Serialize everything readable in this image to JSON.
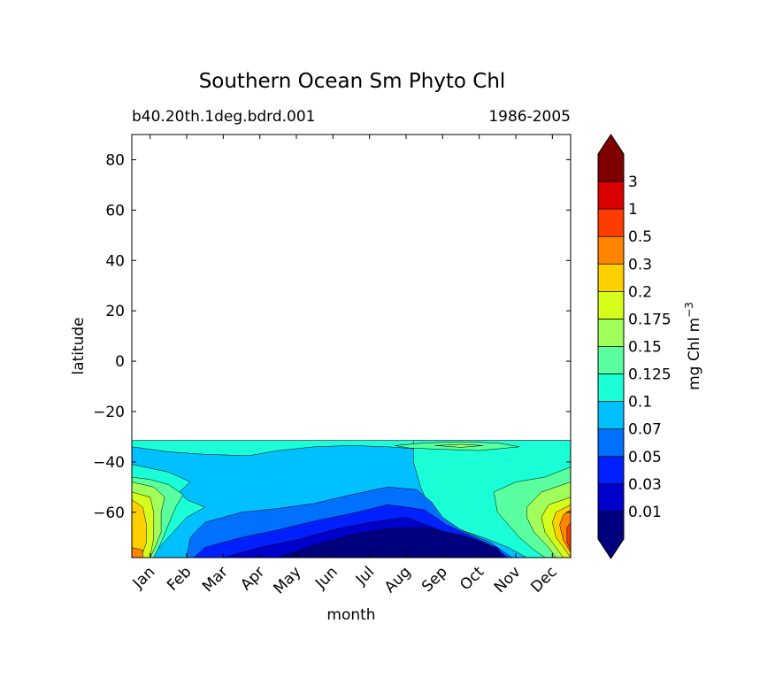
{
  "chart_data": {
    "type": "contourf",
    "title": "Southern Ocean Sm Phyto Chl",
    "subtitle_left": "b40.20th.1deg.bdrd.001",
    "subtitle_right": "1986-2005",
    "xlabel": "month",
    "ylabel": "latitude",
    "x_ticks": [
      "Jan",
      "Feb",
      "Mar",
      "Apr",
      "May",
      "Jun",
      "Jul",
      "Aug",
      "Sep",
      "Oct",
      "Nov",
      "Dec"
    ],
    "y_ticks": [
      80,
      60,
      40,
      20,
      0,
      -20,
      -40,
      -60
    ],
    "ylim": [
      -78,
      90
    ],
    "data_lat_range": [
      -78,
      -31.5
    ],
    "colorbar": {
      "label": "mg Chl m",
      "label_sup": "−3",
      "levels": [
        "0.01",
        "0.03",
        "0.05",
        "0.07",
        "0.1",
        "0.125",
        "0.15",
        "0.175",
        "0.2",
        "0.3",
        "0.5",
        "1",
        "3"
      ],
      "colors": [
        "#00007f",
        "#0000cd",
        "#0020ff",
        "#0070ff",
        "#00c0ff",
        "#1affd5",
        "#5affa0",
        "#a0ff5a",
        "#d5ff1a",
        "#ffd000",
        "#ff8500",
        "#ff3b00",
        "#db0000",
        "#7f0000"
      ],
      "extend": "both"
    },
    "regions": [
      {
        "name": "band-0.07-0.1",
        "level": 4,
        "points": [
          [
            0.0,
            -31.5
          ],
          [
            12.0,
            -31.5
          ],
          [
            12.0,
            -78
          ],
          [
            0.0,
            -78
          ]
        ]
      },
      {
        "name": "band-0.1-0.125-north",
        "level": 5,
        "points": [
          [
            0.0,
            -31.5
          ],
          [
            12.0,
            -31.5
          ],
          [
            12.0,
            -38
          ],
          [
            11.0,
            -37.5
          ],
          [
            10.0,
            -36.0
          ],
          [
            9.0,
            -35.5
          ],
          [
            8.0,
            -35.0
          ],
          [
            7.0,
            -34.0
          ],
          [
            6.0,
            -33.5
          ],
          [
            5.0,
            -34.0
          ],
          [
            4.0,
            -35.5
          ],
          [
            3.2,
            -37.5
          ],
          [
            2.0,
            -37.0
          ],
          [
            1.0,
            -36.0
          ],
          [
            0.0,
            -34.0
          ]
        ]
      },
      {
        "name": "band-0.1-0.125-winter",
        "level": 5,
        "points": [
          [
            0.0,
            -41.0
          ],
          [
            1.0,
            -44.0
          ],
          [
            1.6,
            -48.0
          ],
          [
            1.3,
            -52.0
          ],
          [
            1.5,
            -55.0
          ],
          [
            2.0,
            -58.0
          ],
          [
            1.5,
            -62.0
          ],
          [
            1.0,
            -70.0
          ],
          [
            0.5,
            -78.0
          ],
          [
            0.0,
            -78.0
          ]
        ]
      },
      {
        "name": "band-0.1-0.125-spring",
        "level": 5,
        "points": [
          [
            7.7,
            -31.5
          ],
          [
            12.0,
            -31.5
          ],
          [
            12.0,
            -78.0
          ],
          [
            10.8,
            -78.0
          ],
          [
            10.3,
            -74.0
          ],
          [
            9.6,
            -70.0
          ],
          [
            8.8,
            -66.0
          ],
          [
            8.2,
            -60.0
          ],
          [
            7.9,
            -50.0
          ],
          [
            7.7,
            -40.0
          ]
        ]
      },
      {
        "name": "band-0.07-0.1-core",
        "level": 3,
        "points": [
          [
            1.5,
            -78.0
          ],
          [
            1.6,
            -70.0
          ],
          [
            2.0,
            -64.0
          ],
          [
            3.0,
            -60.0
          ],
          [
            4.0,
            -58.5
          ],
          [
            5.0,
            -56.5
          ],
          [
            6.0,
            -53.0
          ],
          [
            7.0,
            -50.0
          ],
          [
            7.8,
            -51.0
          ],
          [
            8.2,
            -56.0
          ],
          [
            8.5,
            -62.0
          ],
          [
            9.0,
            -67.0
          ],
          [
            9.8,
            -72.0
          ],
          [
            10.4,
            -78.0
          ]
        ]
      },
      {
        "name": "band-0.05-0.07",
        "level": 2,
        "points": [
          [
            1.7,
            -78.0
          ],
          [
            2.0,
            -74.0
          ],
          [
            3.0,
            -70.0
          ],
          [
            4.0,
            -67.0
          ],
          [
            5.0,
            -63.5
          ],
          [
            6.0,
            -60.5
          ],
          [
            7.0,
            -57.0
          ],
          [
            8.0,
            -59.0
          ],
          [
            8.6,
            -65.0
          ],
          [
            9.2,
            -69.0
          ],
          [
            9.8,
            -73.0
          ],
          [
            10.3,
            -78.0
          ]
        ]
      },
      {
        "name": "band-0.03-0.05",
        "level": 1,
        "points": [
          [
            2.5,
            -78.0
          ],
          [
            3.5,
            -74.0
          ],
          [
            4.5,
            -71.0
          ],
          [
            5.5,
            -67.0
          ],
          [
            6.5,
            -64.0
          ],
          [
            7.5,
            -62.0
          ],
          [
            8.5,
            -67.5
          ],
          [
            9.3,
            -71.0
          ],
          [
            10.0,
            -74.0
          ],
          [
            10.2,
            -78.0
          ]
        ]
      },
      {
        "name": "band-0.01-0.03",
        "level": 0,
        "points": [
          [
            4.0,
            -78.0
          ],
          [
            5.0,
            -73.0
          ],
          [
            6.0,
            -69.0
          ],
          [
            7.0,
            -66.5
          ],
          [
            8.0,
            -66.0
          ],
          [
            9.0,
            -69.0
          ],
          [
            9.6,
            -72.0
          ],
          [
            10.0,
            -75.0
          ],
          [
            10.1,
            -78.0
          ]
        ]
      },
      {
        "name": "spring-0.125-0.15",
        "level": 6,
        "points": [
          [
            12.0,
            -42.0
          ],
          [
            11.3,
            -46.0
          ],
          [
            10.5,
            -48.0
          ],
          [
            9.9,
            -52.0
          ],
          [
            10.0,
            -60.0
          ],
          [
            10.3,
            -65.0
          ],
          [
            10.6,
            -70.0
          ],
          [
            11.0,
            -75.0
          ],
          [
            11.3,
            -78.0
          ],
          [
            12.0,
            -78.0
          ]
        ]
      },
      {
        "name": "spring-0.15-0.175",
        "level": 7,
        "points": [
          [
            12.0,
            -48.0
          ],
          [
            11.2,
            -52.0
          ],
          [
            10.8,
            -58.0
          ],
          [
            10.8,
            -62.0
          ],
          [
            11.0,
            -68.0
          ],
          [
            11.4,
            -74.0
          ],
          [
            11.6,
            -78.0
          ],
          [
            12.0,
            -78.0
          ]
        ]
      },
      {
        "name": "spring-0.175-0.2",
        "level": 8,
        "points": [
          [
            12.0,
            -54.0
          ],
          [
            11.4,
            -57.0
          ],
          [
            11.2,
            -62.0
          ],
          [
            11.3,
            -68.0
          ],
          [
            11.6,
            -74.0
          ],
          [
            11.8,
            -78.0
          ],
          [
            12.0,
            -78.0
          ]
        ]
      },
      {
        "name": "spring-0.2-0.3",
        "level": 9,
        "points": [
          [
            12.0,
            -57.0
          ],
          [
            11.6,
            -60.0
          ],
          [
            11.5,
            -64.0
          ],
          [
            11.6,
            -70.0
          ],
          [
            11.9,
            -76.0
          ],
          [
            12.0,
            -78.0
          ]
        ]
      },
      {
        "name": "spring-0.3-0.5",
        "level": 10,
        "points": [
          [
            12.0,
            -59.0
          ],
          [
            11.8,
            -61.0
          ],
          [
            11.7,
            -65.0
          ],
          [
            11.8,
            -71.0
          ],
          [
            12.0,
            -76.0
          ]
        ]
      },
      {
        "name": "spring-0.5-1",
        "level": 11,
        "points": [
          [
            12.0,
            -64.0
          ],
          [
            11.9,
            -66.0
          ],
          [
            11.9,
            -72.0
          ],
          [
            12.0,
            -75.0
          ]
        ]
      },
      {
        "name": "summer-0.125-0.15",
        "level": 6,
        "points": [
          [
            0.0,
            -46.0
          ],
          [
            0.5,
            -47.0
          ],
          [
            1.0,
            -49.0
          ],
          [
            1.4,
            -53.0
          ],
          [
            1.2,
            -58.0
          ],
          [
            1.0,
            -65.0
          ],
          [
            0.8,
            -72.0
          ],
          [
            0.6,
            -78.0
          ],
          [
            0.0,
            -78.0
          ]
        ]
      },
      {
        "name": "summer-0.15-0.175",
        "level": 7,
        "points": [
          [
            0.0,
            -48.0
          ],
          [
            0.6,
            -50.0
          ],
          [
            0.9,
            -54.0
          ],
          [
            0.8,
            -60.0
          ],
          [
            0.8,
            -68.0
          ],
          [
            0.6,
            -75.0
          ],
          [
            0.5,
            -78.0
          ],
          [
            0.0,
            -78.0
          ]
        ]
      },
      {
        "name": "summer-0.175-0.2",
        "level": 8,
        "points": [
          [
            0.0,
            -52.0
          ],
          [
            0.5,
            -54.0
          ],
          [
            0.6,
            -60.0
          ],
          [
            0.6,
            -70.0
          ],
          [
            0.5,
            -78.0
          ],
          [
            0.0,
            -78.0
          ]
        ]
      },
      {
        "name": "summer-0.2-0.3",
        "level": 9,
        "points": [
          [
            0.0,
            -55.0
          ],
          [
            0.3,
            -58.0
          ],
          [
            0.4,
            -65.0
          ],
          [
            0.4,
            -72.0
          ],
          [
            0.3,
            -76.0
          ],
          [
            0.0,
            -76.0
          ]
        ]
      },
      {
        "name": "summer-0.3-0.5",
        "level": 10,
        "points": [
          [
            0.0,
            -74.0
          ],
          [
            0.3,
            -75.0
          ],
          [
            0.3,
            -78.0
          ],
          [
            0.0,
            -78.0
          ]
        ]
      },
      {
        "name": "sep-patch-0.125-0.15",
        "level": 6,
        "points": [
          [
            7.2,
            -33.5
          ],
          [
            8.0,
            -32.5
          ],
          [
            9.0,
            -32.0
          ],
          [
            10.0,
            -32.5
          ],
          [
            10.6,
            -34.0
          ],
          [
            9.5,
            -35.5
          ],
          [
            8.5,
            -35.0
          ],
          [
            7.6,
            -34.5
          ]
        ]
      },
      {
        "name": "sep-patch-0.15-0.175",
        "level": 7,
        "points": [
          [
            8.3,
            -33.5
          ],
          [
            9.0,
            -33.0
          ],
          [
            9.6,
            -33.5
          ],
          [
            9.0,
            -34.2
          ]
        ]
      }
    ]
  }
}
